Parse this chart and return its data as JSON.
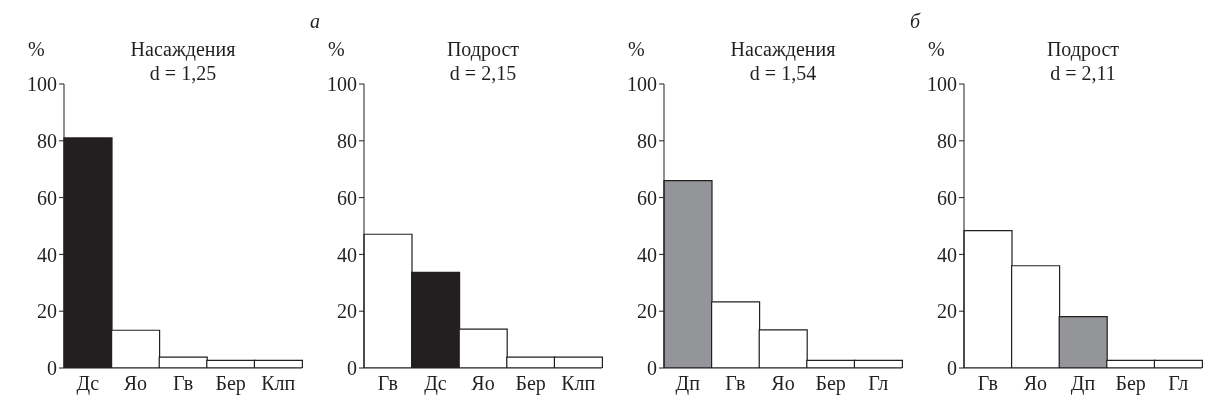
{
  "chart_data": [
    {
      "type": "bar",
      "title": "Насаждения",
      "subtitle": "d = 1,25",
      "ylabel": "%",
      "categories": [
        "Дс",
        "Яо",
        "Гв",
        "Бер",
        "Клп"
      ],
      "values": [
        81,
        13.3,
        3.8,
        2.7,
        2.7
      ],
      "colors": [
        "#231f20",
        "#ffffff",
        "#ffffff",
        "#ffffff",
        "#ffffff"
      ],
      "ylim": [
        0,
        100
      ],
      "yticks": [
        0,
        20,
        40,
        60,
        80,
        100
      ],
      "grid": false,
      "legend": false
    },
    {
      "type": "bar",
      "title": "Подрост",
      "subtitle": "d = 2,15",
      "ylabel": "%",
      "annotations": [
        "а"
      ],
      "categories": [
        "Гв",
        "Дс",
        "Яо",
        "Бер",
        "Клп"
      ],
      "values": [
        47.1,
        33.7,
        13.7,
        3.8,
        3.8
      ],
      "colors": [
        "#ffffff",
        "#231f20",
        "#ffffff",
        "#ffffff",
        "#ffffff"
      ],
      "ylim": [
        0,
        100
      ],
      "yticks": [
        0,
        20,
        40,
        60,
        80,
        100
      ],
      "grid": false,
      "legend": false
    },
    {
      "type": "bar",
      "title": "Насаждения",
      "subtitle": "d = 1,54",
      "ylabel": "%",
      "categories": [
        "Дп",
        "Гв",
        "Яо",
        "Бер",
        "Гл"
      ],
      "values": [
        66,
        23.3,
        13.4,
        2.7,
        2.7
      ],
      "colors": [
        "#939598",
        "#ffffff",
        "#ffffff",
        "#ffffff",
        "#ffffff"
      ],
      "ylim": [
        0,
        100
      ],
      "yticks": [
        0,
        20,
        40,
        60,
        80,
        100
      ],
      "grid": false,
      "legend": false
    },
    {
      "type": "bar",
      "title": "Подрост",
      "subtitle": "d = 2,11",
      "ylabel": "%",
      "annotations": [
        "б"
      ],
      "categories": [
        "Гв",
        "Яо",
        "Дп",
        "Бер",
        "Гл"
      ],
      "values": [
        48.4,
        36,
        18.1,
        2.7,
        2.7
      ],
      "colors": [
        "#ffffff",
        "#ffffff",
        "#939598",
        "#ffffff",
        "#ffffff"
      ],
      "ylim": [
        0,
        100
      ],
      "yticks": [
        0,
        20,
        40,
        60,
        80,
        100
      ],
      "grid": false,
      "legend": false
    }
  ]
}
